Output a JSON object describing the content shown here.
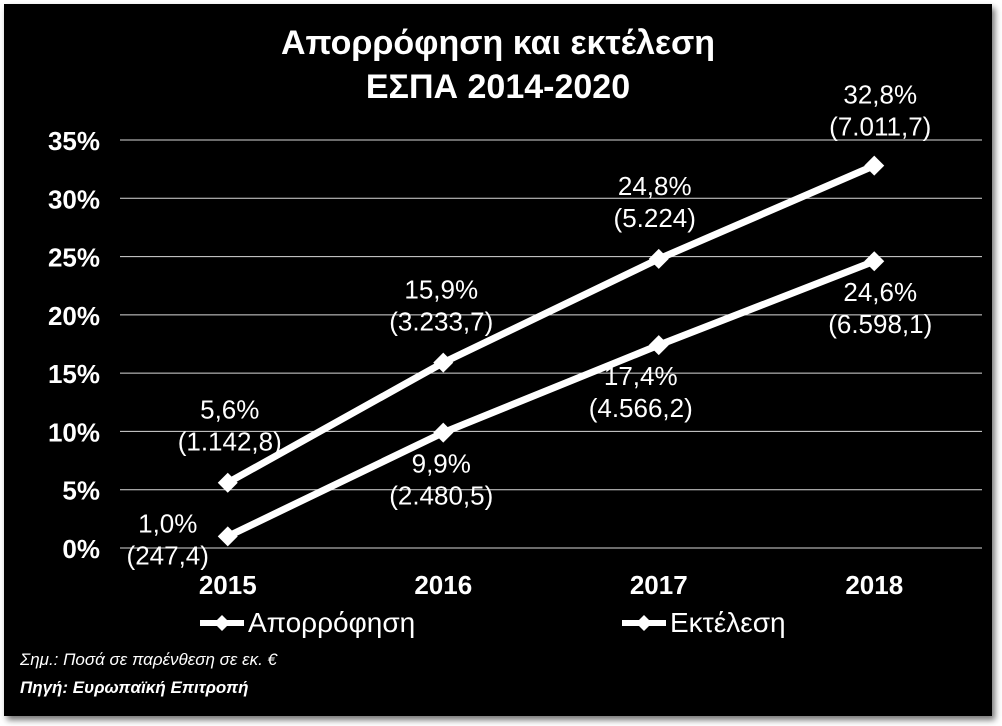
{
  "colors": {
    "background": "#000000",
    "foreground": "#ffffff",
    "grid": "#d9d9d9"
  },
  "title": [
    "Απορρόφηση και εκτέλεση",
    "ΕΣΠΑ 2014-2020"
  ],
  "legend": [
    {
      "label": "Απορρόφηση",
      "icon": "diamond-line-marker"
    },
    {
      "label": "Εκτέλεση",
      "icon": "diamond-line-marker"
    }
  ],
  "notes": {
    "note": "Σημ.: Ποσά σε παρένθεση σε εκ. €",
    "source": "Πηγή: Ευρωπαϊκή Επιτροπή"
  },
  "chart_data": {
    "type": "line",
    "title": "Απορρόφηση και εκτέλεση ΕΣΠΑ 2014-2020",
    "categories": [
      "2015",
      "2016",
      "2017",
      "2018"
    ],
    "ylim": [
      0,
      35
    ],
    "yticks": [
      0,
      5,
      10,
      15,
      20,
      25,
      30,
      35
    ],
    "ytick_labels": [
      "0%",
      "5%",
      "10%",
      "15%",
      "20%",
      "25%",
      "30%",
      "35%"
    ],
    "grid": true,
    "legend_position": "bottom",
    "series": [
      {
        "name": "Απορρόφηση",
        "values": [
          5.6,
          15.9,
          24.8,
          32.8
        ],
        "labels": [
          [
            "5,6%",
            "(1.142,8)"
          ],
          [
            "15,9%",
            "(3.233,7)"
          ],
          [
            "24,8%",
            "(5.224)"
          ],
          [
            "32,8%",
            "(7.011,7)"
          ]
        ]
      },
      {
        "name": "Εκτέλεση",
        "values": [
          1.0,
          9.9,
          17.4,
          24.6
        ],
        "labels": [
          [
            "1,0%",
            "(247,4)"
          ],
          [
            "9,9%",
            "(2.480,5)"
          ],
          [
            "17,4%",
            "(4.566,2)"
          ],
          [
            "24,6%",
            "(6.598,1)"
          ]
        ]
      }
    ]
  }
}
